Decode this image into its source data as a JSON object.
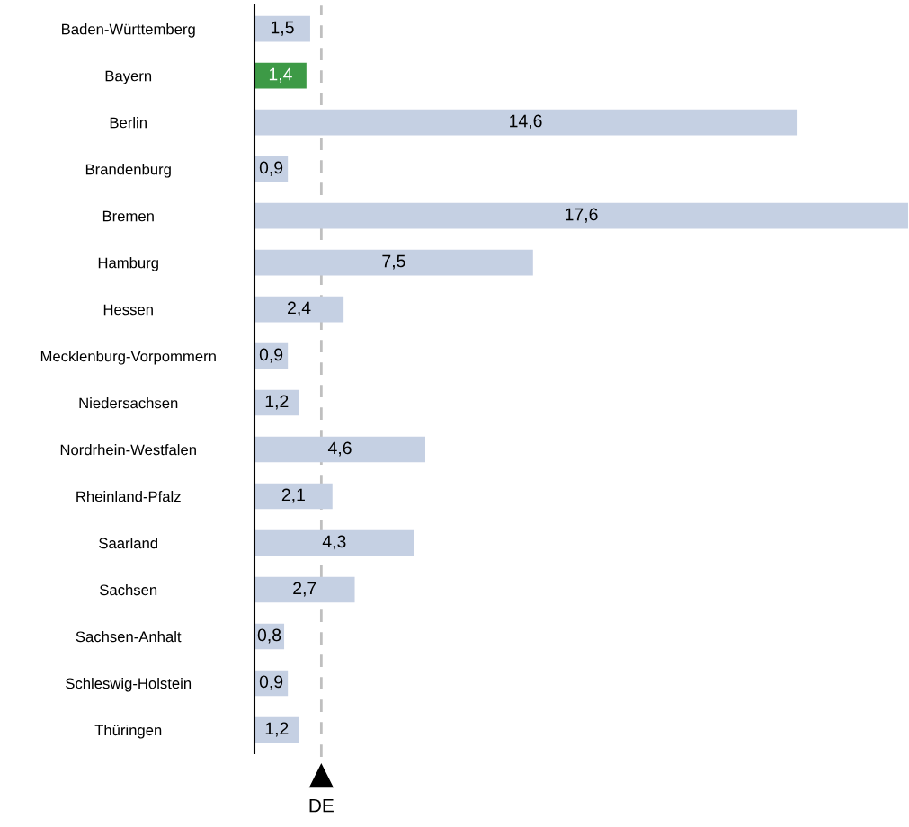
{
  "chart_data": {
    "type": "bar",
    "orientation": "horizontal",
    "categories": [
      "Baden-Württemberg",
      "Bayern",
      "Berlin",
      "Brandenburg",
      "Bremen",
      "Hamburg",
      "Hessen",
      "Mecklenburg-Vorpommern",
      "Niedersachsen",
      "Nordrhein-Westfalen",
      "Rheinland-Pfalz",
      "Saarland",
      "Sachsen",
      "Sachsen-Anhalt",
      "Schleswig-Holstein",
      "Thüringen"
    ],
    "values": [
      1.5,
      1.4,
      14.6,
      0.9,
      17.6,
      7.5,
      2.4,
      0.9,
      1.2,
      4.6,
      2.1,
      4.3,
      2.7,
      0.8,
      0.9,
      1.2
    ],
    "value_labels": [
      "1,5",
      "1,4",
      "14,6",
      "0,9",
      "17,6",
      "7,5",
      "2,4",
      "0,9",
      "1,2",
      "4,6",
      "2,1",
      "4,3",
      "2,7",
      "0,8",
      "0,9",
      "1,2"
    ],
    "colors": [
      "#c5d0e3",
      "#3d9a46",
      "#c5d0e3",
      "#c5d0e3",
      "#c5d0e3",
      "#c5d0e3",
      "#c5d0e3",
      "#c5d0e3",
      "#c5d0e3",
      "#c5d0e3",
      "#c5d0e3",
      "#c5d0e3",
      "#c5d0e3",
      "#c5d0e3",
      "#c5d0e3",
      "#c5d0e3"
    ],
    "tick_labels": "y",
    "grid": false,
    "ref_lines": [
      {
        "axis": "x",
        "value": 1.8,
        "label": "DE",
        "color": "#bfbfbf",
        "line_style": "dashed"
      }
    ]
  }
}
